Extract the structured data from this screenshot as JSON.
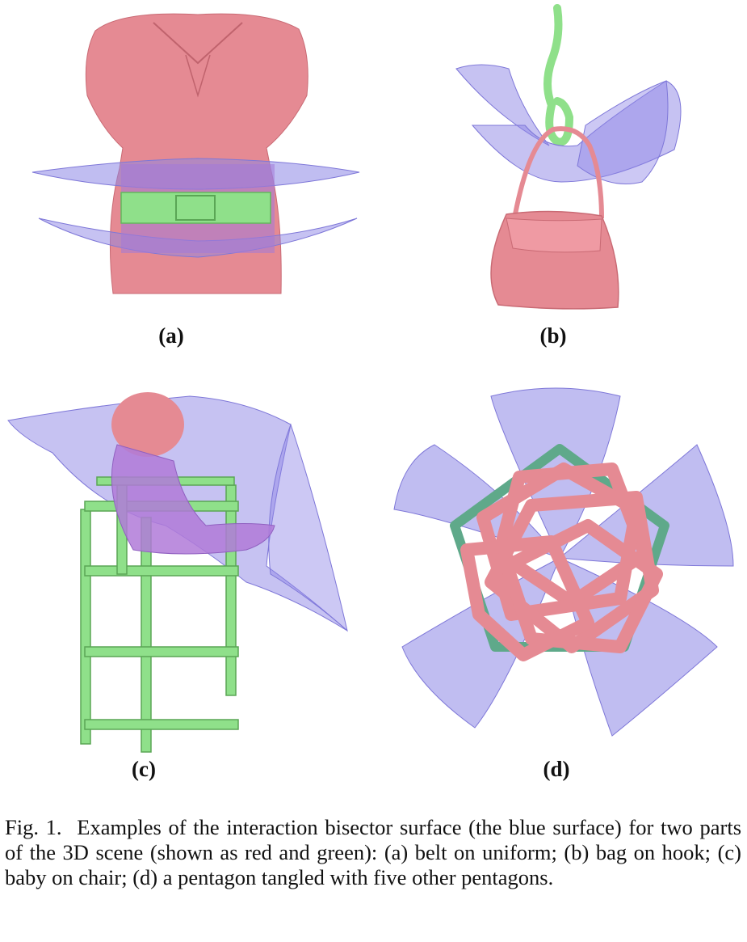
{
  "colors": {
    "red_part": "#e58a93",
    "green_part": "#8fe08a",
    "teal_part": "#5fa98a",
    "bisector_surface": "#8d86e6"
  },
  "panels": [
    {
      "label": "(a)",
      "subject": "belt on uniform"
    },
    {
      "label": "(b)",
      "subject": "bag on hook"
    },
    {
      "label": "(c)",
      "subject": "baby on chair"
    },
    {
      "label": "(d)",
      "subject": "a pentagon tangled with five other pentagons"
    }
  ],
  "caption": {
    "fig_label": "Fig. 1.",
    "text": "Examples of the interaction bisector surface (the blue surface) for two parts of the 3D scene (shown as red and green): (a) belt on uniform; (b) bag on hook; (c) baby on chair; (d) a pentagon tangled with five other pentagons."
  }
}
